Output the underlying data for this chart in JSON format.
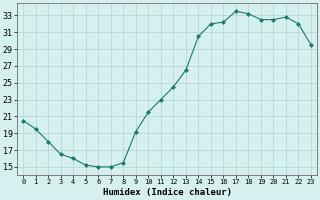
{
  "x": [
    0,
    1,
    2,
    3,
    4,
    5,
    6,
    7,
    8,
    9,
    10,
    11,
    12,
    13,
    14,
    15,
    16,
    17,
    18,
    19,
    20,
    21,
    22,
    23
  ],
  "y": [
    20.5,
    19.5,
    18.0,
    16.5,
    16.0,
    15.2,
    15.0,
    15.0,
    15.5,
    19.2,
    21.5,
    23.0,
    24.5,
    26.5,
    30.5,
    32.0,
    32.2,
    33.5,
    33.2,
    32.5,
    32.5,
    32.8,
    32.0,
    29.5
  ],
  "xlabel": "Humidex (Indice chaleur)",
  "ylabel": "",
  "line_color": "#1a7a6e",
  "marker": "D",
  "marker_size": 2.0,
  "bg_color": "#d6f0f0",
  "grid_color": "#b8d8d8",
  "yticks": [
    15,
    17,
    19,
    21,
    23,
    25,
    27,
    29,
    31,
    33
  ],
  "xticks": [
    0,
    1,
    2,
    3,
    4,
    5,
    6,
    7,
    8,
    9,
    10,
    11,
    12,
    13,
    14,
    15,
    16,
    17,
    18,
    19,
    20,
    21,
    22,
    23
  ],
  "ylim": [
    14.0,
    34.5
  ],
  "xlim": [
    -0.5,
    23.5
  ]
}
